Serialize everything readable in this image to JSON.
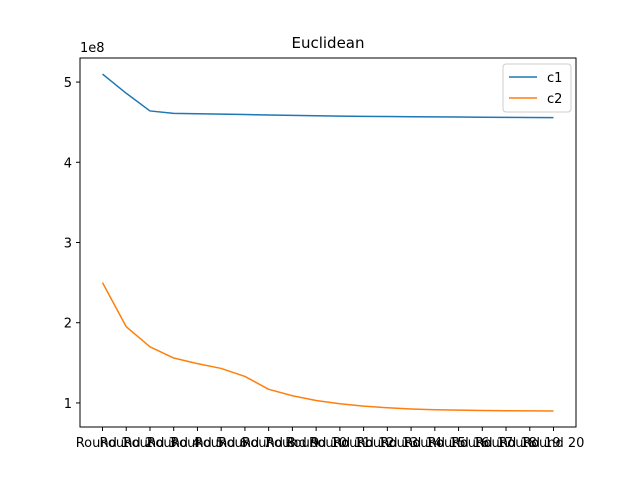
{
  "chart_data": {
    "type": "line",
    "title": "Euclidean",
    "xlabel": "",
    "ylabel": "",
    "y_scale_label": "1e8",
    "categories": [
      "Round 1",
      "Round 2",
      "Round 3",
      "Round 4",
      "Round 5",
      "Round 6",
      "Round 7",
      "Round 8",
      "Round 9",
      "Round 10",
      "Round 11",
      "Round 12",
      "Round 13",
      "Round 14",
      "Round 15",
      "Round 16",
      "Round 17",
      "Round 18",
      "Round 19",
      "Round 20"
    ],
    "yticks": [
      1,
      2,
      3,
      4,
      5
    ],
    "ylim": [
      0.7,
      5.3
    ],
    "legend_position": "top-right",
    "series": [
      {
        "name": "c1",
        "color": "#1f77b4",
        "values": [
          5.1,
          4.86,
          4.64,
          4.61,
          4.605,
          4.6,
          4.595,
          4.59,
          4.585,
          4.58,
          4.575,
          4.572,
          4.57,
          4.568,
          4.566,
          4.564,
          4.562,
          4.56,
          4.558,
          4.556
        ]
      },
      {
        "name": "c2",
        "color": "#ff7f0e",
        "values": [
          2.5,
          1.95,
          1.7,
          1.56,
          1.49,
          1.43,
          1.33,
          1.17,
          1.09,
          1.03,
          0.99,
          0.96,
          0.94,
          0.925,
          0.915,
          0.91,
          0.905,
          0.903,
          0.901,
          0.9
        ]
      }
    ]
  }
}
